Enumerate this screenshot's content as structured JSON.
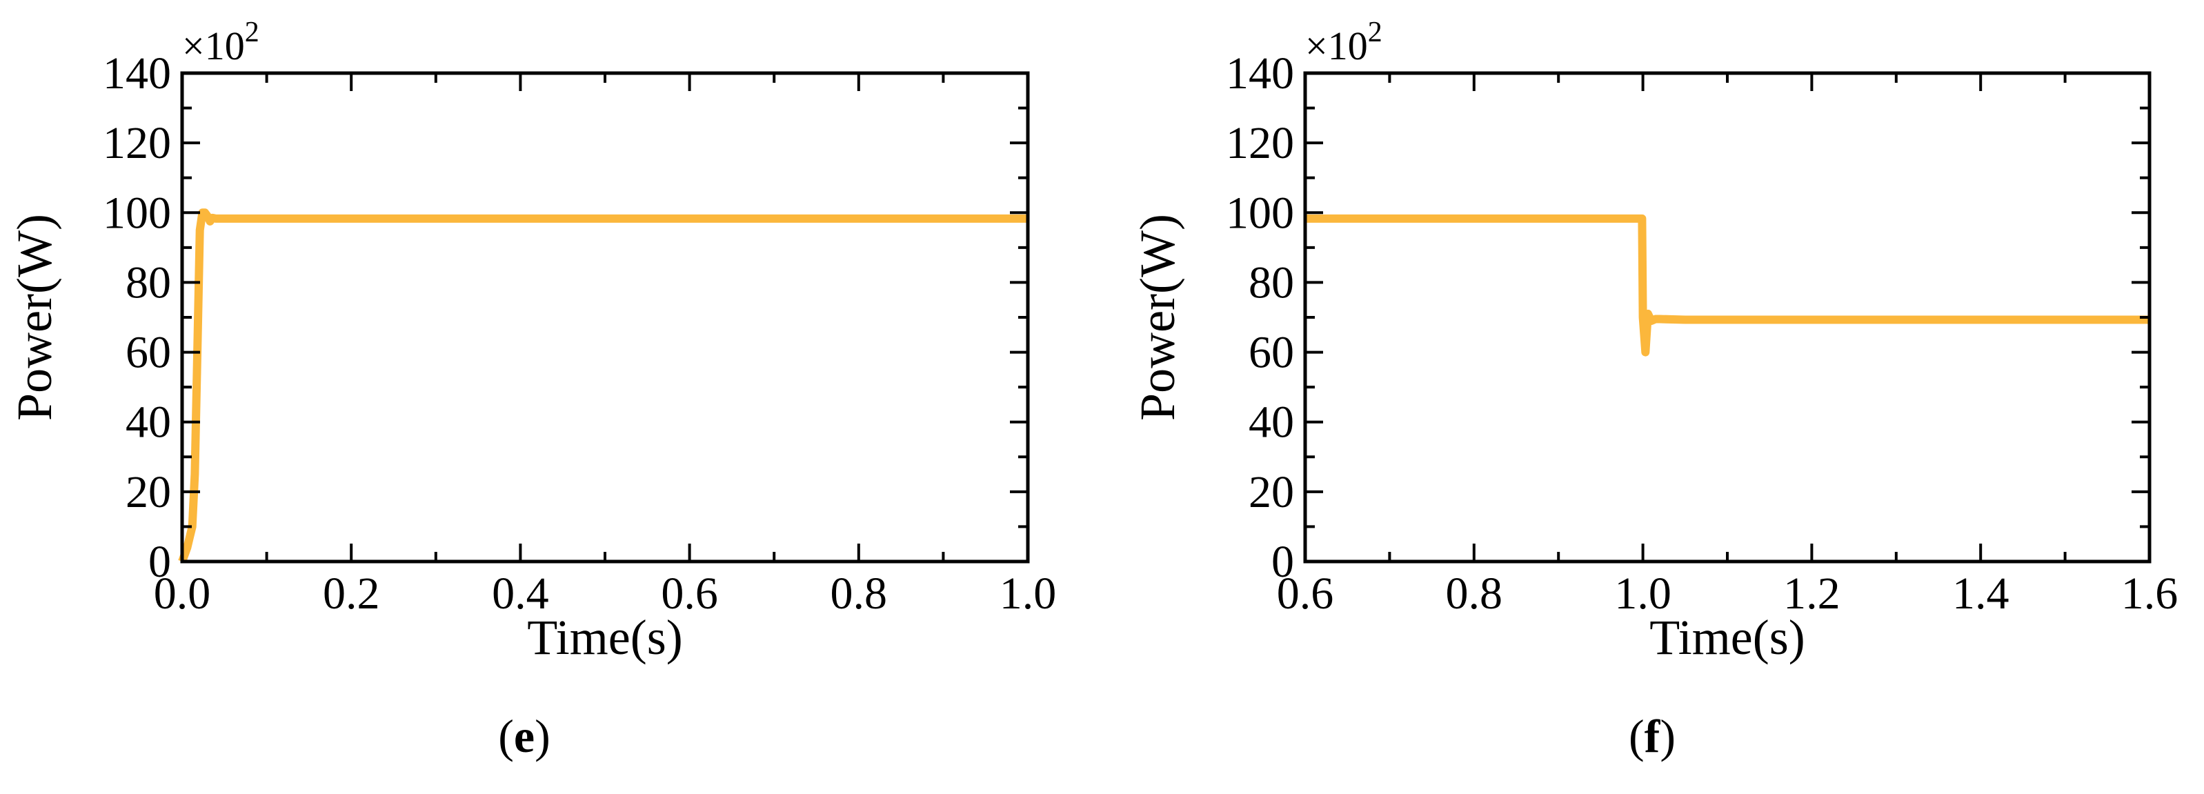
{
  "chart_data": [
    {
      "type": "line",
      "panel_label": "e",
      "xlabel": "Time(s)",
      "ylabel": "Power(W)",
      "y_multiplier_label": "×10",
      "y_multiplier_exponent": "2",
      "xlim": [
        0.0,
        1.0
      ],
      "ylim": [
        0,
        140
      ],
      "x_ticks": [
        "0.0",
        "0.2",
        "0.4",
        "0.6",
        "0.8",
        "1.0"
      ],
      "y_ticks": [
        "0",
        "20",
        "40",
        "60",
        "80",
        "100",
        "120",
        "140"
      ],
      "grid": false,
      "series": [
        {
          "color": "#FBB73C",
          "x": [
            0.0,
            0.003,
            0.006,
            0.009,
            0.012,
            0.015,
            0.018,
            0.021,
            0.024,
            0.027,
            0.03,
            0.033,
            0.036,
            0.04,
            0.06,
            0.1,
            0.2,
            0.4,
            0.6,
            0.8,
            1.0
          ],
          "y": [
            0,
            2,
            4,
            7,
            10,
            25,
            60,
            95,
            100,
            100,
            99,
            97.5,
            98.5,
            98.3,
            98.3,
            98.3,
            98.3,
            98.3,
            98.3,
            98.3,
            98.3
          ]
        }
      ]
    },
    {
      "type": "line",
      "panel_label": "f",
      "xlabel": "Time(s)",
      "ylabel": "Power(W)",
      "y_multiplier_label": "×10",
      "y_multiplier_exponent": "2",
      "xlim": [
        0.6,
        1.6
      ],
      "ylim": [
        0,
        140
      ],
      "x_ticks": [
        "0.6",
        "0.8",
        "1.0",
        "1.2",
        "1.4",
        "1.6"
      ],
      "y_ticks": [
        "0",
        "20",
        "40",
        "60",
        "80",
        "100",
        "120",
        "140"
      ],
      "grid": false,
      "series": [
        {
          "color": "#FBB73C",
          "x": [
            0.6,
            0.7,
            0.8,
            0.9,
            0.999,
            1.0,
            1.003,
            1.006,
            1.01,
            1.015,
            1.02,
            1.05,
            1.1,
            1.2,
            1.3,
            1.4,
            1.5,
            1.6
          ],
          "y": [
            98.3,
            98.3,
            98.3,
            98.3,
            98.3,
            70,
            60,
            71,
            69,
            69.5,
            69.5,
            69.3,
            69.3,
            69.3,
            69.3,
            69.3,
            69.3,
            69.3
          ]
        }
      ]
    }
  ]
}
